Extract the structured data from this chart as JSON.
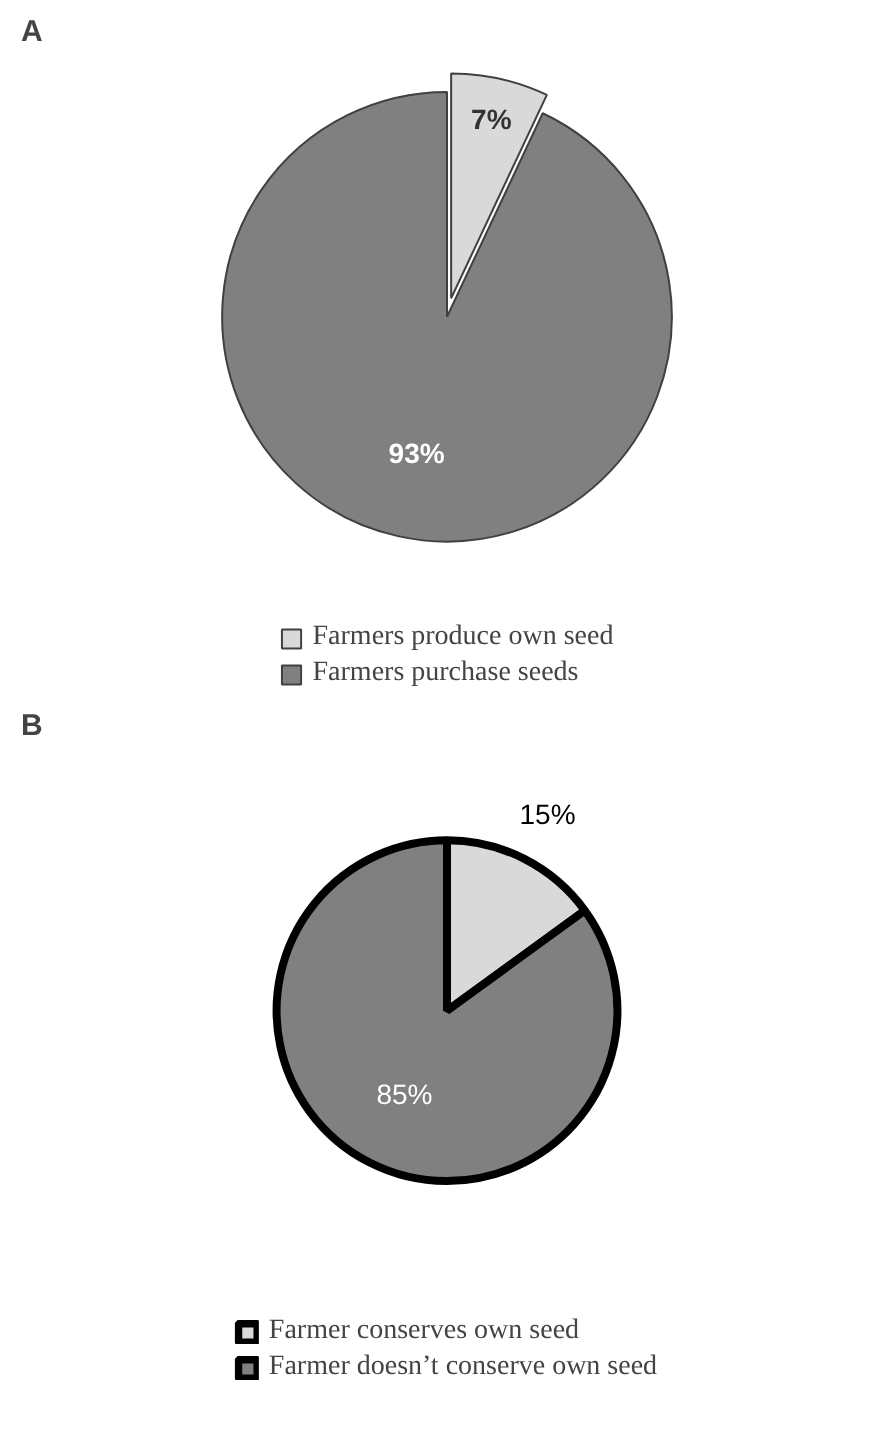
{
  "chart_data": [
    {
      "type": "pie",
      "title": "A",
      "categories": [
        "Farmers produce own seed",
        "Farmers purchase seeds"
      ],
      "values": [
        7,
        93
      ],
      "value_labels": [
        "7%",
        "93%"
      ],
      "colors": [
        "#d9d9d9",
        "#808080"
      ],
      "legend": "bottom"
    },
    {
      "type": "pie",
      "title": "B",
      "categories": [
        "Farmer conserves own seed",
        "Farmer doesn’t conserve own seed"
      ],
      "values": [
        15,
        85
      ],
      "value_labels": [
        "15%",
        "85%"
      ],
      "colors": [
        "#d9d9d9",
        "#808080"
      ],
      "legend": "bottom"
    }
  ]
}
